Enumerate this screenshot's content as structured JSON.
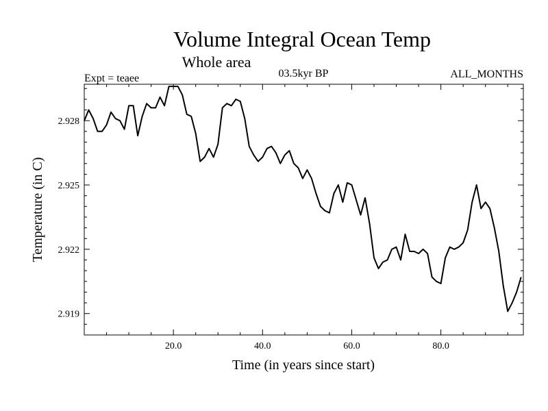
{
  "chart_data": {
    "type": "line",
    "title": "Volume Integral Ocean Temp",
    "subtitle": "Whole area",
    "experiment_label": "Expt = teaee",
    "period_label": "03.5kyr BP",
    "months_label": "ALL_MONTHS",
    "xlabel": "Time (in years since start)",
    "ylabel": "Temperature (in C)",
    "xlim": [
      0,
      98.5
    ],
    "ylim": [
      2.918,
      2.9297
    ],
    "xticks": [
      20,
      40,
      60,
      80
    ],
    "xtick_labels": [
      "20.0",
      "40.0",
      "60.0",
      "80.0"
    ],
    "yticks": [
      2.919,
      2.922,
      2.925,
      2.928
    ],
    "ytick_labels": [
      "2.919",
      "2.922",
      "2.925",
      "2.928"
    ],
    "grid": false,
    "series": [
      {
        "name": "teaee",
        "x": [
          0,
          1,
          2,
          3,
          4,
          5,
          6,
          7,
          8,
          9,
          10,
          11,
          12,
          13,
          14,
          15,
          16,
          17,
          18,
          19,
          20,
          21,
          22,
          23,
          24,
          25,
          26,
          27,
          28,
          29,
          30,
          31,
          32,
          33,
          34,
          35,
          36,
          37,
          38,
          39,
          40,
          41,
          42,
          43,
          44,
          45,
          46,
          47,
          48,
          49,
          50,
          51,
          52,
          53,
          54,
          55,
          56,
          57,
          58,
          59,
          60,
          61,
          62,
          63,
          64,
          65,
          66,
          67,
          68,
          69,
          70,
          71,
          72,
          73,
          74,
          75,
          76,
          77,
          78,
          79,
          80,
          81,
          82,
          83,
          84,
          85,
          86,
          87,
          88,
          89,
          90,
          91,
          92,
          93,
          94,
          95,
          96,
          97,
          98
        ],
        "values": [
          2.928,
          2.9285,
          2.9281,
          2.9275,
          2.9275,
          2.9278,
          2.9284,
          2.9281,
          2.928,
          2.9276,
          2.9287,
          2.9287,
          2.9273,
          2.9282,
          2.9288,
          2.9286,
          2.9286,
          2.9291,
          2.9287,
          2.9296,
          2.9296,
          2.9296,
          2.9292,
          2.9283,
          2.9282,
          2.9274,
          2.9261,
          2.9263,
          2.9267,
          2.9263,
          2.9269,
          2.9286,
          2.9288,
          2.9287,
          2.929,
          2.9289,
          2.9281,
          2.9268,
          2.9264,
          2.9261,
          2.9263,
          2.9267,
          2.9268,
          2.9265,
          2.926,
          2.9264,
          2.9266,
          2.926,
          2.9258,
          2.9253,
          2.9257,
          2.9253,
          2.9246,
          2.924,
          2.9238,
          2.9237,
          2.9246,
          2.925,
          2.9242,
          2.9251,
          2.925,
          2.9243,
          2.9236,
          2.9244,
          2.9232,
          2.9216,
          2.9211,
          2.9214,
          2.9215,
          2.922,
          2.9221,
          2.9215,
          2.9227,
          2.9219,
          2.9219,
          2.9218,
          2.922,
          2.9218,
          2.9207,
          2.9205,
          2.9204,
          2.9216,
          2.9221,
          2.922,
          2.9221,
          2.9223,
          2.9229,
          2.9242,
          2.925,
          2.9239,
          2.9242,
          2.9239,
          2.923,
          2.9219,
          2.9203,
          2.9191,
          2.9195,
          2.92,
          2.9207
        ]
      }
    ]
  }
}
